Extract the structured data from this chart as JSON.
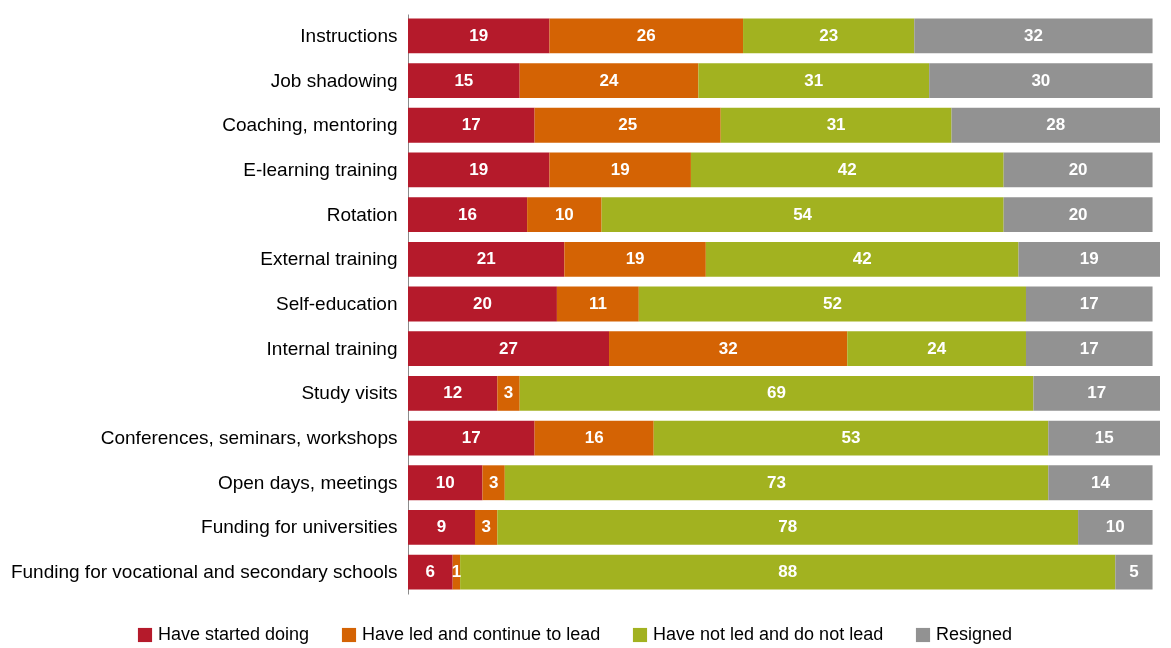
{
  "chart_data": {
    "type": "bar",
    "orientation": "horizontal",
    "stacked": true,
    "categories": [
      "Instructions",
      "Job shadowing",
      "Coaching, mentoring",
      "E-learning training",
      "Rotation",
      "External training",
      "Self-education",
      "Internal training",
      "Study visits",
      "Conferences, seminars, workshops",
      "Open days, meetings",
      "Funding for universities",
      "Funding for vocational and secondary schools"
    ],
    "series": [
      {
        "name": "Have started doing",
        "color": "#b51a2b",
        "values": [
          19,
          15,
          17,
          19,
          16,
          21,
          20,
          27,
          12,
          17,
          10,
          9,
          6
        ]
      },
      {
        "name": "Have led and continue to lead",
        "color": "#d46304",
        "values": [
          26,
          24,
          25,
          19,
          10,
          19,
          11,
          32,
          3,
          16,
          3,
          3,
          1
        ]
      },
      {
        "name": "Have not led and do not lead",
        "color": "#a2b220",
        "values": [
          23,
          31,
          31,
          42,
          54,
          42,
          52,
          24,
          69,
          53,
          73,
          78,
          88
        ]
      },
      {
        "name": "Resigned",
        "color": "#929292",
        "values": [
          32,
          30,
          28,
          20,
          20,
          19,
          17,
          17,
          17,
          15,
          14,
          10,
          5
        ]
      }
    ],
    "xlim": [
      0,
      101
    ],
    "tick_labels": "y",
    "data_labels": true,
    "legend": "bottom"
  }
}
